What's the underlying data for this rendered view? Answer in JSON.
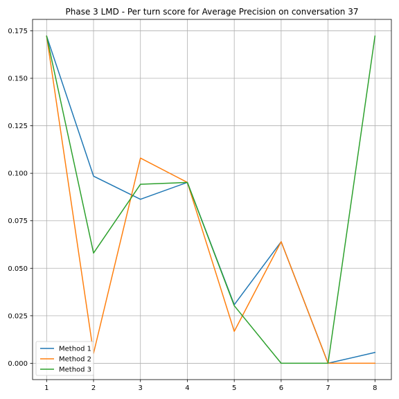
{
  "chart_data": {
    "type": "line",
    "title": "Phase 3 LMD - Per turn score for Average Precision on conversation 37",
    "xlabel": "",
    "ylabel": "",
    "x": [
      1,
      2,
      3,
      4,
      5,
      6,
      7,
      8
    ],
    "xlim": [
      0.7,
      8.35
    ],
    "ylim": [
      -0.0086,
      0.181
    ],
    "xticks": [
      1,
      2,
      3,
      4,
      5,
      6,
      7,
      8
    ],
    "yticks": [
      "0.000",
      "0.025",
      "0.050",
      "0.075",
      "0.100",
      "0.125",
      "0.150",
      "0.175"
    ],
    "ytick_values": [
      0,
      0.025,
      0.05,
      0.075,
      0.1,
      0.125,
      0.15,
      0.175
    ],
    "grid": true,
    "legend_position": "lower-left",
    "series": [
      {
        "name": "Method 1",
        "color": "#1f77b4",
        "values": [
          0.1722,
          0.0985,
          0.0863,
          0.0952,
          0.0308,
          0.064,
          0.0,
          0.0057
        ]
      },
      {
        "name": "Method 2",
        "color": "#ff7f0e",
        "values": [
          0.1722,
          0.0052,
          0.108,
          0.0952,
          0.0168,
          0.064,
          0.0,
          0.0
        ]
      },
      {
        "name": "Method 3",
        "color": "#2ca02c",
        "values": [
          0.1722,
          0.058,
          0.0942,
          0.0952,
          0.0303,
          0.0,
          0.0,
          0.1722
        ]
      }
    ]
  }
}
